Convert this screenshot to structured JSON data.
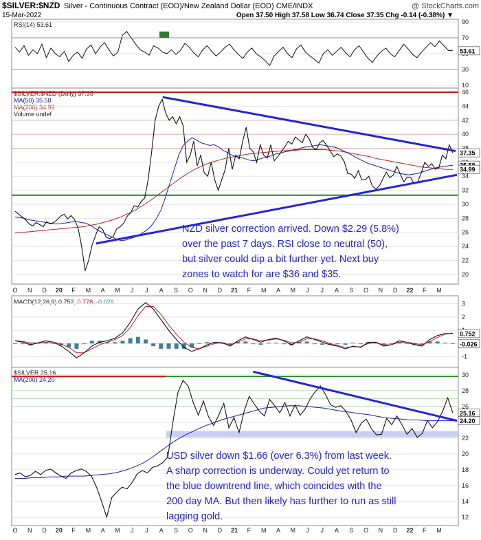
{
  "header": {
    "symbol": "$SILVER:$NZD",
    "description": "Silver - Continuous Contract (EOD)/New Zealand Dollar (EOD)  CME/INDX",
    "watermark": "@ StockCharts.com",
    "date": "15-Mar-2022",
    "ohlc": "Open 37.50  High 37.58  Low 36.74  Close 37.35  Chg -0.14 (-0.38%) ▼"
  },
  "x_axis": {
    "labels": [
      "O",
      "N",
      "D",
      "20",
      "F",
      "M",
      "A",
      "M",
      "J",
      "J",
      "A",
      "S",
      "O",
      "N",
      "D",
      "21",
      "F",
      "M",
      "A",
      "M",
      "J",
      "J",
      "A",
      "S",
      "O",
      "N",
      "D",
      "22",
      "F",
      "M"
    ]
  },
  "colors": {
    "price": "#111111",
    "ma50": "#1a1ab0",
    "ma200": "#c0202a",
    "trendline": "#2323d9",
    "green_level": "#1e8a1e",
    "red_level": "#cc1111",
    "rsi_overbought_fill": "#2e7d32",
    "macd_hist": "#3f7f9a"
  },
  "chart_data": [
    {
      "type": "line",
      "panel": "RSI",
      "legend": "RSI(14) 53.61",
      "current": "53.61",
      "y_ticks": [
        "90",
        "70",
        "50",
        "30",
        "10"
      ],
      "ylim": [
        10,
        90
      ],
      "series": [
        {
          "name": "RSI(14)",
          "values": [
            58,
            52,
            60,
            48,
            55,
            50,
            62,
            45,
            57,
            50,
            46,
            53,
            40,
            48,
            52,
            44,
            56,
            61,
            50,
            58,
            64,
            55,
            47,
            52,
            73,
            78,
            70,
            62,
            55,
            52,
            48,
            60,
            57,
            52,
            50,
            55,
            49,
            54,
            63,
            58,
            51,
            46,
            55,
            60,
            53,
            47,
            52,
            58,
            62,
            55,
            49,
            44,
            52,
            57,
            50,
            46,
            41,
            35,
            47,
            53,
            58,
            50,
            45,
            56,
            61,
            52,
            47,
            43,
            38,
            50,
            55,
            48,
            53,
            58,
            51,
            46,
            55,
            60,
            52,
            44,
            39,
            47,
            53,
            57,
            50,
            46,
            54,
            62,
            56,
            49,
            45,
            52,
            58,
            64,
            59,
            66,
            60,
            54,
            53.61
          ]
        }
      ]
    },
    {
      "type": "line",
      "panel": "NZD",
      "legend": [
        "$SILVER:$NZD (Daily) 37.35",
        "MA(50) 35.58",
        "MA(200) 34.99",
        "Volume undef"
      ],
      "y_ticks": [
        "46",
        "44",
        "42",
        "40",
        "38",
        "36",
        "34",
        "32",
        "30",
        "28",
        "26",
        "24",
        "22",
        "20"
      ],
      "ylim": [
        19,
        46.2
      ],
      "price_tags": [
        "37.35",
        "35.58",
        "34.99"
      ],
      "levels": [
        46,
        31.3
      ],
      "series": [
        {
          "name": "$SILVER:$NZD (Daily)",
          "values": [
            29,
            28.6,
            28.2,
            27.8,
            27.2,
            26.9,
            27.4,
            27.1,
            26.8,
            27.5,
            27.2,
            27.4,
            27.8,
            28.3,
            28.6,
            27.9,
            28.4,
            27.8,
            26.6,
            24,
            20.5,
            22,
            24.2,
            25.6,
            26.8,
            26.4,
            25.3,
            25.1,
            25.4,
            26.5,
            26.8,
            27.3,
            28.3,
            28.8,
            29.8,
            29.6,
            30.4,
            30.9,
            33.5,
            37.5,
            42,
            44,
            45,
            43,
            42,
            42.5,
            41.5,
            42.5,
            41.2,
            36,
            37,
            39,
            35.5,
            37,
            34.5,
            34,
            36,
            33.5,
            32,
            33.5,
            35,
            38,
            35,
            37,
            36.5,
            39,
            41,
            38,
            37.5,
            36,
            38.5,
            37,
            36.6,
            38.5,
            36.2,
            36.8,
            37.5,
            38.2,
            39,
            38.6,
            39.6,
            39.2,
            38.8,
            40,
            39.3,
            38.1,
            37.8,
            38.8,
            39.1,
            38.4,
            37.6,
            36.8,
            37.2,
            36.9,
            36.1,
            34.4,
            34.3,
            33.7,
            34.8,
            33.5,
            33.5,
            34,
            32.6,
            32.2,
            32.6,
            33.6,
            34.6,
            33.8,
            34.2,
            35.4,
            34.3,
            33.2,
            33.9,
            33.8,
            32.9,
            33.2,
            34.5,
            36,
            35.4,
            35.8,
            35,
            35.2,
            37,
            36.5,
            38.5,
            37.35
          ]
        },
        {
          "name": "MA(50)",
          "values": [
            28.2,
            28.1,
            28,
            27.8,
            27.7,
            27.6,
            27.5,
            27.4,
            27.3,
            27.2,
            27.2,
            27.3,
            27.4,
            27.5,
            27.5,
            27.4,
            27.3,
            27,
            26.6,
            26.2,
            25.9,
            25.6,
            25.3,
            25,
            24.8,
            24.9,
            25.1,
            25.3,
            25.6,
            26,
            26.4,
            27.1,
            28,
            29.2,
            31,
            33,
            35,
            37,
            38.4,
            39,
            39.5,
            39.2,
            38.8,
            38.6,
            38.4,
            38.5,
            38.2,
            37.7,
            37.4,
            37,
            36.8,
            36.7,
            36.5,
            36.3,
            36.2,
            36.4,
            36.6,
            36.8,
            36.9,
            37.2,
            37.3,
            37.5,
            37.6,
            37.8,
            37.8,
            38.1,
            38.2,
            38.3,
            38.4,
            38.5,
            38.4,
            38.3,
            38.2,
            38,
            37.7,
            37.4,
            37.1,
            36.7,
            36.4,
            36.1,
            35.8,
            35.6,
            35.4,
            35.2,
            35,
            34.8,
            34.6,
            34.4,
            34.3,
            34.2,
            34.3,
            34.4,
            34.6,
            34.8,
            35,
            35.2,
            35.3,
            35.4,
            35.5,
            35.58
          ]
        },
        {
          "name": "MA(200)",
          "values": [
            25.9,
            26,
            26.1,
            26.2,
            26.3,
            26.4,
            26.5,
            26.6,
            26.7,
            26.8,
            27,
            27.2,
            27.5,
            27.8,
            28.2,
            28.7,
            29.2,
            29.9,
            30.6,
            31.4,
            32.2,
            33,
            33.8,
            34.5,
            35.1,
            35.6,
            36,
            36.3,
            36.6,
            36.8,
            37,
            37.2,
            37.3,
            37.4,
            37.5,
            37.6,
            37.7,
            37.7,
            37.8,
            37.8,
            37.8,
            37.8,
            37.7,
            37.6,
            37.4,
            37.2,
            37,
            36.8,
            36.5,
            36.3,
            36.1,
            35.9,
            35.7,
            35.5,
            35.3,
            35.2,
            35.1,
            35,
            34.99
          ]
        }
      ],
      "trendlines": [
        {
          "from": [
            "2020-08",
            "45.3"
          ],
          "to": [
            "2022-03",
            "37.6"
          ]
        },
        {
          "from": [
            "2020-04",
            "24.4"
          ],
          "to": [
            "2022-03",
            "34.2"
          ]
        }
      ],
      "annotation": [
        "NZD silver correction arrived. Down $2.29 (5.8%)",
        "over the past 7 days. RSI close to neutral (50),",
        "but silver could dip a bit further yet. Next buy",
        "zones to watch for are $36 and $35."
      ]
    },
    {
      "type": "line",
      "panel": "MACD",
      "legend": [
        "MACD(12,26,9) 0.752, ",
        "0.778",
        ", -0.026"
      ],
      "y_ticks": [
        "3",
        "2",
        "1",
        "0",
        "-1"
      ],
      "price_tags": [
        "0.752",
        "-0.026"
      ],
      "ylim": [
        -1.6,
        3.4
      ],
      "series": [
        {
          "name": "MACD",
          "values": [
            0.2,
            0.1,
            -0.1,
            0.05,
            0.2,
            0.1,
            -0.2,
            -0.6,
            -1.1,
            -0.7,
            -0.2,
            0.1,
            0.2,
            0.4,
            0.8,
            1.6,
            2.6,
            3.1,
            2.6,
            1.8,
            1,
            0.3,
            -0.3,
            -0.6,
            -0.4,
            -0.1,
            0.1,
            0.05,
            -0.2,
            0.2,
            0.5,
            0.3,
            0.1,
            0.3,
            0.4,
            0.2,
            -0.1,
            0.2,
            0.5,
            0.3,
            0.1,
            -0.1,
            -0.2,
            -0.4,
            -0.2,
            -0.3,
            0.1,
            0.1,
            -0.2,
            -0.1,
            0.2,
            0.1,
            -0.1,
            -0.2,
            0.3,
            0.6,
            0.75,
            0.752
          ]
        },
        {
          "name": "Signal",
          "values": [
            0.2,
            0.15,
            0.05,
            0.02,
            0.1,
            0.1,
            -0.05,
            -0.3,
            -0.7,
            -0.7,
            -0.4,
            -0.1,
            0.1,
            0.3,
            0.6,
            1.2,
            2.1,
            2.8,
            2.8,
            2.2,
            1.4,
            0.7,
            0.1,
            -0.3,
            -0.4,
            -0.2,
            0,
            0.05,
            -0.1,
            0.1,
            0.35,
            0.35,
            0.2,
            0.25,
            0.35,
            0.25,
            0.05,
            0.1,
            0.35,
            0.35,
            0.2,
            0,
            -0.15,
            -0.3,
            -0.25,
            -0.25,
            0,
            0.05,
            -0.1,
            -0.1,
            0.1,
            0.1,
            0,
            -0.1,
            0.15,
            0.45,
            0.7,
            0.778
          ]
        }
      ]
    },
    {
      "type": "line",
      "panel": "USD",
      "legend": [
        "$SILVER 25.16",
        "MA(200) 24.20"
      ],
      "y_ticks": [
        "30",
        "28",
        "26",
        "24",
        "22",
        "20",
        "18",
        "16",
        "14",
        "12"
      ],
      "ylim": [
        11.3,
        30.6
      ],
      "price_tags": [
        "25.16",
        "24.20"
      ],
      "levels": [
        29.8
      ],
      "series": [
        {
          "name": "$SILVER",
          "values": [
            17.4,
            17.6,
            17.1,
            17.3,
            17.8,
            17.4,
            17.9,
            18.1,
            17.6,
            17.2,
            16.9,
            17.6,
            17.9,
            18.1,
            17.8,
            17.2,
            15.8,
            14,
            12,
            14.5,
            15.2,
            15.8,
            15.6,
            16.4,
            17.5,
            17.9,
            17.6,
            18.3,
            18.5,
            18.9,
            19.6,
            24,
            27.8,
            29.3,
            28.6,
            26.5,
            24.9,
            26.7,
            24.7,
            23.6,
            24.9,
            26.4,
            23.3,
            24.6,
            22.7,
            25.4,
            27.3,
            26.3,
            25.4,
            24.8,
            26.9,
            26.1,
            25.2,
            26.5,
            24.8,
            26.2,
            24.9,
            25.7,
            27,
            27.9,
            28.6,
            27.5,
            26.2,
            25.9,
            26.1,
            25.4,
            24.3,
            22.7,
            23.9,
            24.4,
            23.2,
            22.4,
            22.5,
            24.5,
            23.7,
            24.8,
            23.7,
            22.5,
            23.2,
            22.1,
            22.6,
            24.2,
            23.3,
            24.1,
            25.4,
            27.1,
            25.16
          ]
        },
        {
          "name": "MA(200)",
          "values": [
            16.9,
            16.9,
            17,
            17,
            17.1,
            17.1,
            17.2,
            17.2,
            17.2,
            17.3,
            17.4,
            17.5,
            17.7,
            18,
            18.4,
            18.9,
            19.6,
            20.4,
            21.2,
            21.9,
            22.5,
            23,
            23.5,
            23.9,
            24.3,
            24.6,
            24.9,
            25.2,
            25.5,
            25.8,
            25.9,
            26,
            26.1,
            26.1,
            26,
            25.9,
            25.8,
            25.6,
            25.4,
            25.3,
            25.1,
            25,
            24.8,
            24.6,
            24.5,
            24.4,
            24.3,
            24.3,
            24.2,
            24.2,
            24.2,
            24.2
          ]
        }
      ],
      "trendlines": [
        {
          "from": [
            "2021-02",
            "30.4"
          ],
          "to": [
            "2022-03",
            "24.2"
          ]
        }
      ],
      "annotation": [
        "USD silver down $1.66 (over 6.3%) from last week.",
        "A sharp correction is underway. Could yet return to",
        "the blue downtrend line, which coincides with the",
        "200 day MA. But then likely has further to run as still",
        "lagging gold."
      ]
    }
  ]
}
